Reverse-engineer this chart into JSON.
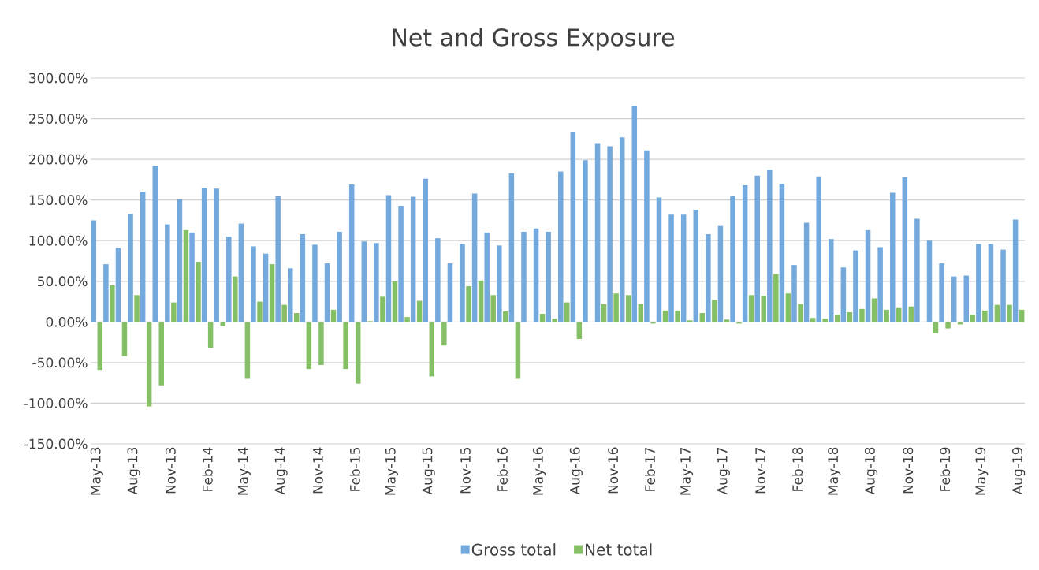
{
  "chart_data": {
    "type": "bar",
    "title": "Net and Gross Exposure",
    "categories": [
      "May-13",
      null,
      null,
      "Aug-13",
      null,
      null,
      "Nov-13",
      null,
      null,
      "Feb-14",
      null,
      null,
      "May-14",
      null,
      null,
      "Aug-14",
      null,
      null,
      "Nov-14",
      null,
      null,
      "Feb-15",
      null,
      null,
      "May-15",
      null,
      null,
      "Aug-15",
      null,
      null,
      "Nov-15",
      null,
      null,
      "Feb-16",
      null,
      null,
      "May-16",
      null,
      null,
      "Aug-16",
      null,
      null,
      "Nov-16",
      null,
      null,
      "Feb-17",
      null,
      null,
      "May-17",
      null,
      null,
      "Aug-17",
      null,
      null,
      "Nov-17",
      null,
      null,
      "Feb-18",
      null,
      null,
      "May-18",
      null,
      null,
      "Aug-18",
      null,
      null,
      "Nov-18",
      null,
      null,
      "Feb-19",
      null,
      null,
      "May-19",
      null,
      null,
      "Aug-19"
    ],
    "series": [
      {
        "name": "Gross total",
        "color": "#73a9dc",
        "values": [
          125,
          71,
          91,
          133,
          160,
          192,
          120,
          151,
          110,
          165,
          164,
          105,
          121,
          93,
          84,
          155,
          66,
          108,
          95,
          72,
          111,
          169,
          99,
          97,
          156,
          143,
          154,
          176,
          103,
          72,
          96,
          158,
          110,
          94,
          183,
          111,
          115,
          111,
          185,
          233,
          199,
          219,
          216,
          227,
          266,
          211,
          153,
          132,
          132,
          138,
          108,
          118,
          155,
          168,
          180,
          187,
          170,
          70,
          122,
          179,
          102,
          67,
          88,
          113,
          92,
          159,
          178,
          127,
          100,
          72,
          56,
          57,
          96,
          96,
          89,
          126
        ]
      },
      {
        "name": "Net total",
        "color": "#86c066",
        "values": [
          -59,
          45,
          -42,
          33,
          -104,
          -78,
          24,
          113,
          74,
          -32,
          -5,
          56,
          -70,
          25,
          71,
          21,
          11,
          -58,
          -53,
          15,
          -58,
          -76,
          1,
          31,
          50,
          6,
          26,
          -67,
          -29,
          0,
          44,
          51,
          33,
          13,
          -70,
          0,
          10,
          4,
          24,
          -21,
          0,
          22,
          35,
          33,
          22,
          -2,
          14,
          14,
          2,
          11,
          27,
          3,
          -2,
          33,
          32,
          59,
          35,
          22,
          5,
          4,
          9,
          12,
          16,
          29,
          15,
          17,
          19,
          0,
          -14,
          -8,
          -3,
          9,
          14,
          21,
          21,
          15
        ]
      }
    ],
    "ylim": [
      -150,
      300
    ],
    "yticks": [
      {
        "value": -150,
        "label": "-150.00%"
      },
      {
        "value": -100,
        "label": "-100.00%"
      },
      {
        "value": -50,
        "label": "-50.00%"
      },
      {
        "value": 0,
        "label": "0.00%"
      },
      {
        "value": 50,
        "label": "50.00%"
      },
      {
        "value": 100,
        "label": "100.00%"
      },
      {
        "value": 150,
        "label": "150.00%"
      },
      {
        "value": 200,
        "label": "200.00%"
      },
      {
        "value": 250,
        "label": "250.00%"
      },
      {
        "value": 300,
        "label": "300.00%"
      }
    ],
    "grid": "y",
    "legend": "bottom"
  }
}
